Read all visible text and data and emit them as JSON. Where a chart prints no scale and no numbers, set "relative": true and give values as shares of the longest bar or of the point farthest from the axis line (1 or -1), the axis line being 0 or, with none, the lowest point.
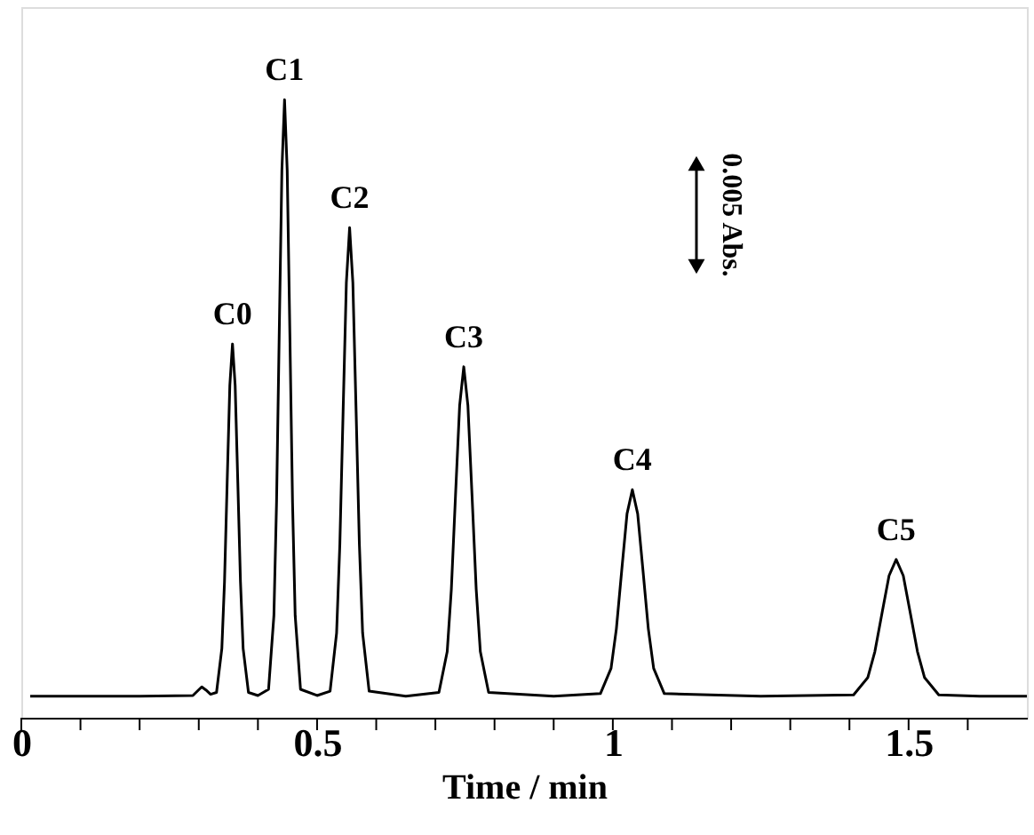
{
  "chart_data": {
    "type": "line",
    "relative": true,
    "xlabel": "Time / min",
    "xlim": [
      0,
      1.7
    ],
    "xticks": [
      0,
      {
        "value": 0.1,
        "label": null
      },
      {
        "value": 0.2,
        "label": null
      },
      {
        "value": 0.3,
        "label": null
      },
      {
        "value": 0.4,
        "label": null
      },
      0.5,
      {
        "value": 0.6,
        "label": null
      },
      {
        "value": 0.7,
        "label": null
      },
      {
        "value": 0.8,
        "label": null
      },
      {
        "value": 0.9,
        "label": null
      },
      1,
      {
        "value": 1.1,
        "label": null
      },
      {
        "value": 1.2,
        "label": null
      },
      {
        "value": 1.3,
        "label": null
      },
      {
        "value": 1.4,
        "label": null
      },
      1.5,
      {
        "value": 1.6,
        "label": null
      }
    ],
    "grid": false,
    "marker": "none",
    "line_style": "solid",
    "series": [
      {
        "color": "#000000",
        "x": [
          0.015,
          0.1,
          0.2,
          0.29,
          0.305,
          0.312,
          0.32,
          0.33,
          0.339,
          0.3435,
          0.348,
          0.3525,
          0.357,
          0.3615,
          0.366,
          0.3705,
          0.375,
          0.384,
          0.4,
          0.418,
          0.427,
          0.4315,
          0.436,
          0.4405,
          0.445,
          0.4495,
          0.454,
          0.4585,
          0.463,
          0.472,
          0.5,
          0.522,
          0.533,
          0.5385,
          0.544,
          0.5495,
          0.555,
          0.5605,
          0.566,
          0.5715,
          0.577,
          0.588,
          0.65,
          0.706,
          0.72,
          0.727,
          0.734,
          0.741,
          0.748,
          0.755,
          0.762,
          0.769,
          0.776,
          0.79,
          0.9,
          0.979,
          0.997,
          1.006,
          1.015,
          1.024,
          1.033,
          1.042,
          1.051,
          1.06,
          1.069,
          1.087,
          1.25,
          1.407,
          1.431,
          1.443,
          1.455,
          1.467,
          1.479,
          1.491,
          1.503,
          1.515,
          1.527,
          1.551,
          1.62,
          1.7
        ],
        "values": [
          0.035,
          0.035,
          0.035,
          0.036,
          0.05,
          0.045,
          0.038,
          0.041,
          0.112,
          0.22,
          0.381,
          0.538,
          0.605,
          0.538,
          0.381,
          0.22,
          0.112,
          0.041,
          0.036,
          0.046,
          0.165,
          0.349,
          0.621,
          0.886,
          1.0,
          0.886,
          0.621,
          0.349,
          0.165,
          0.046,
          0.036,
          0.043,
          0.137,
          0.281,
          0.495,
          0.704,
          0.793,
          0.704,
          0.495,
          0.281,
          0.137,
          0.043,
          0.035,
          0.041,
          0.107,
          0.208,
          0.359,
          0.505,
          0.568,
          0.505,
          0.359,
          0.208,
          0.107,
          0.041,
          0.035,
          0.039,
          0.08,
          0.144,
          0.238,
          0.33,
          0.369,
          0.33,
          0.238,
          0.144,
          0.08,
          0.039,
          0.035,
          0.037,
          0.065,
          0.107,
          0.169,
          0.23,
          0.256,
          0.23,
          0.169,
          0.107,
          0.065,
          0.037,
          0.035,
          0.035
        ]
      }
    ],
    "annotations": [
      {
        "text": "C0",
        "x": 0.357,
        "y": 0.605
      },
      {
        "text": "C1",
        "x": 0.445,
        "y": 1.0
      },
      {
        "text": "C2",
        "x": 0.555,
        "y": 0.793
      },
      {
        "text": "C3",
        "x": 0.748,
        "y": 0.568
      },
      {
        "text": "C4",
        "x": 1.033,
        "y": 0.369
      },
      {
        "text": "C5",
        "x": 1.479,
        "y": 0.256
      },
      "0.005 Abs."
    ]
  }
}
